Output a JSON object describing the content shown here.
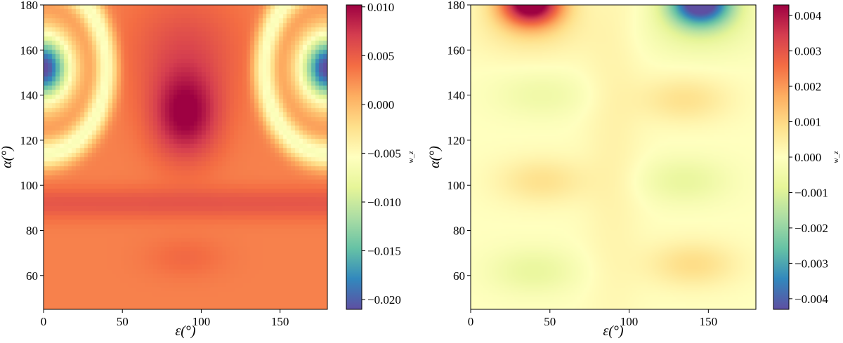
{
  "chart_data": [
    {
      "type": "heatmap",
      "panel": "left",
      "xlabel": "ε(°)",
      "ylabel": "α(°)",
      "xlim": [
        0,
        180
      ],
      "ylim": [
        45,
        180
      ],
      "xticks": [
        0,
        50,
        100,
        150
      ],
      "yticks": [
        60,
        80,
        100,
        120,
        140,
        160,
        180
      ],
      "colormap": "Spectral_r",
      "colorbar": {
        "label": "w_z",
        "vmin": -0.021,
        "vmax": 0.0102,
        "ticks": [
          -0.02,
          -0.015,
          -0.01,
          -0.005,
          0.0,
          0.005,
          0.01
        ],
        "tick_labels": [
          "−0.020",
          "−0.015",
          "−0.010",
          "−0.005",
          "0.000",
          "0.005",
          "0.010"
        ]
      },
      "background_value": 0.003,
      "features": [
        {
          "eps": 90,
          "alpha": 133,
          "value": 0.0102,
          "note": "central maximum"
        },
        {
          "eps": 3,
          "alpha": 152,
          "value": -0.021,
          "note": "left-edge minimum"
        },
        {
          "eps": 177,
          "alpha": 152,
          "value": -0.021,
          "note": "right-edge minimum"
        },
        {
          "eps": 90,
          "alpha": 92,
          "value": 0.005,
          "note": "horizontal band"
        },
        {
          "eps": 90,
          "alpha": 68,
          "value": 0.004,
          "note": "lower lobe"
        }
      ]
    },
    {
      "type": "heatmap",
      "panel": "right",
      "xlabel": "ε(°)",
      "ylabel": "α(°)",
      "xlim": [
        0,
        180
      ],
      "ylim": [
        45,
        180
      ],
      "xticks": [
        0,
        50,
        100,
        150
      ],
      "yticks": [
        60,
        80,
        100,
        120,
        140,
        160,
        180
      ],
      "colormap": "Spectral_r",
      "colorbar": {
        "label": "w_z",
        "vmin": -0.0043,
        "vmax": 0.0043,
        "ticks": [
          -0.004,
          -0.003,
          -0.002,
          -0.001,
          0.0,
          0.001,
          0.002,
          0.003,
          0.004
        ],
        "tick_labels": [
          "−0.004",
          "−0.003",
          "−0.002",
          "−0.001",
          "0.000",
          "0.001",
          "0.002",
          "0.003",
          "0.004"
        ]
      },
      "background_value": 0.0,
      "features": [
        {
          "eps": 38,
          "alpha": 179,
          "value": 0.0042,
          "note": "top-left maximum"
        },
        {
          "eps": 145,
          "alpha": 179,
          "value": -0.0043,
          "note": "top-right minimum"
        },
        {
          "eps": 45,
          "alpha": 140,
          "value": -0.0005
        },
        {
          "eps": 135,
          "alpha": 138,
          "value": 0.0008
        },
        {
          "eps": 45,
          "alpha": 102,
          "value": 0.0008
        },
        {
          "eps": 135,
          "alpha": 102,
          "value": -0.0007
        },
        {
          "eps": 40,
          "alpha": 62,
          "value": -0.0007
        },
        {
          "eps": 140,
          "alpha": 65,
          "value": 0.0009
        }
      ]
    }
  ]
}
